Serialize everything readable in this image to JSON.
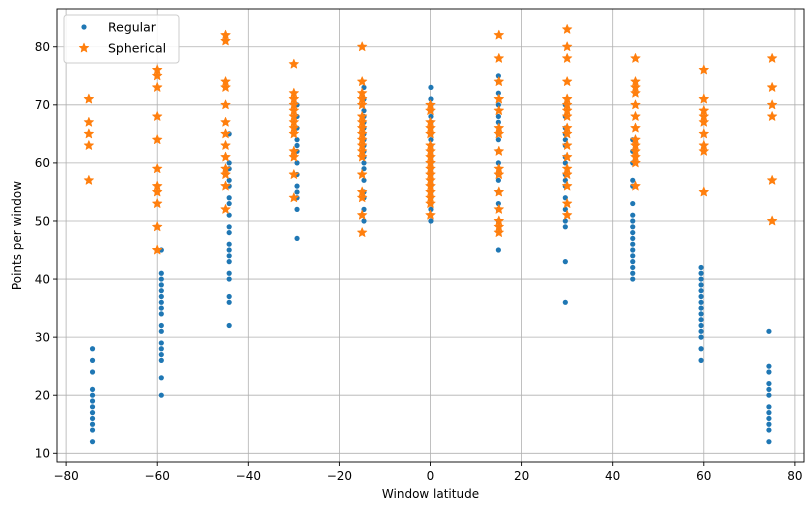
{
  "chart_data": {
    "type": "scatter",
    "title": "",
    "xlabel": "Window latitude",
    "ylabel": "Points per window",
    "xlim": [
      -82,
      82
    ],
    "ylim": [
      8.5,
      86.5
    ],
    "xticks": [
      -80,
      -60,
      -40,
      -20,
      0,
      20,
      40,
      60,
      80
    ],
    "yticks": [
      10,
      20,
      30,
      40,
      50,
      60,
      70,
      80
    ],
    "grid": true,
    "legend_position": "upper-left",
    "series": [
      {
        "name": "Regular",
        "marker": "circle",
        "color": "#1f77b4",
        "points": [
          [
            -74.2,
            12
          ],
          [
            -74.2,
            14
          ],
          [
            -74.2,
            15
          ],
          [
            -74.2,
            16
          ],
          [
            -74.2,
            17
          ],
          [
            -74.2,
            18
          ],
          [
            -74.2,
            19
          ],
          [
            -74.2,
            20
          ],
          [
            -74.2,
            21
          ],
          [
            -74.2,
            24
          ],
          [
            -74.2,
            26
          ],
          [
            -74.2,
            28
          ],
          [
            -59.1,
            20
          ],
          [
            -59.1,
            23
          ],
          [
            -59.1,
            26
          ],
          [
            -59.1,
            27
          ],
          [
            -59.1,
            28
          ],
          [
            -59.1,
            29
          ],
          [
            -59.1,
            31
          ],
          [
            -59.1,
            32
          ],
          [
            -59.1,
            34
          ],
          [
            -59.1,
            35
          ],
          [
            -59.1,
            36
          ],
          [
            -59.1,
            37
          ],
          [
            -59.1,
            38
          ],
          [
            -59.1,
            39
          ],
          [
            -59.1,
            40
          ],
          [
            -59.1,
            41
          ],
          [
            -59.1,
            45
          ],
          [
            -44.2,
            32
          ],
          [
            -44.2,
            36
          ],
          [
            -44.2,
            37
          ],
          [
            -44.2,
            40
          ],
          [
            -44.2,
            41
          ],
          [
            -44.2,
            43
          ],
          [
            -44.2,
            44
          ],
          [
            -44.2,
            45
          ],
          [
            -44.2,
            46
          ],
          [
            -44.2,
            48
          ],
          [
            -44.2,
            49
          ],
          [
            -44.2,
            51
          ],
          [
            -44.2,
            53
          ],
          [
            -44.2,
            54
          ],
          [
            -44.2,
            56
          ],
          [
            -44.2,
            57
          ],
          [
            -44.2,
            59
          ],
          [
            -44.2,
            60
          ],
          [
            -44.2,
            65
          ],
          [
            -29.3,
            47
          ],
          [
            -29.3,
            52
          ],
          [
            -29.3,
            54
          ],
          [
            -29.3,
            55
          ],
          [
            -29.3,
            56
          ],
          [
            -29.3,
            58
          ],
          [
            -29.3,
            60
          ],
          [
            -29.3,
            62
          ],
          [
            -29.3,
            63
          ],
          [
            -29.3,
            64
          ],
          [
            -29.3,
            66
          ],
          [
            -29.3,
            68
          ],
          [
            -29.3,
            70
          ],
          [
            -14.6,
            50
          ],
          [
            -14.6,
            52
          ],
          [
            -14.6,
            54
          ],
          [
            -14.6,
            55
          ],
          [
            -14.6,
            57
          ],
          [
            -14.6,
            59
          ],
          [
            -14.6,
            60
          ],
          [
            -14.6,
            61
          ],
          [
            -14.6,
            62
          ],
          [
            -14.6,
            63
          ],
          [
            -14.6,
            64
          ],
          [
            -14.6,
            65
          ],
          [
            -14.6,
            66
          ],
          [
            -14.6,
            67
          ],
          [
            -14.6,
            68
          ],
          [
            -14.6,
            69
          ],
          [
            -14.6,
            71
          ],
          [
            -14.6,
            73
          ],
          [
            0.1,
            50
          ],
          [
            0.1,
            52
          ],
          [
            0.1,
            53
          ],
          [
            0.1,
            54
          ],
          [
            0.1,
            55
          ],
          [
            0.1,
            56
          ],
          [
            0.1,
            57
          ],
          [
            0.1,
            58
          ],
          [
            0.1,
            59
          ],
          [
            0.1,
            60
          ],
          [
            0.1,
            61
          ],
          [
            0.1,
            62
          ],
          [
            0.1,
            63
          ],
          [
            0.1,
            64
          ],
          [
            0.1,
            65
          ],
          [
            0.1,
            66
          ],
          [
            0.1,
            67
          ],
          [
            0.1,
            68
          ],
          [
            0.1,
            69
          ],
          [
            0.1,
            70
          ],
          [
            0.1,
            71
          ],
          [
            0.1,
            73
          ],
          [
            14.9,
            45
          ],
          [
            14.9,
            50
          ],
          [
            14.9,
            52
          ],
          [
            14.9,
            53
          ],
          [
            14.9,
            55
          ],
          [
            14.9,
            57
          ],
          [
            14.9,
            58
          ],
          [
            14.9,
            60
          ],
          [
            14.9,
            62
          ],
          [
            14.9,
            64
          ],
          [
            14.9,
            65
          ],
          [
            14.9,
            67
          ],
          [
            14.9,
            68
          ],
          [
            14.9,
            70
          ],
          [
            14.9,
            72
          ],
          [
            14.9,
            74
          ],
          [
            14.9,
            75
          ],
          [
            29.6,
            36
          ],
          [
            29.6,
            43
          ],
          [
            29.6,
            49
          ],
          [
            29.6,
            50
          ],
          [
            29.6,
            52
          ],
          [
            29.6,
            54
          ],
          [
            29.6,
            56
          ],
          [
            29.6,
            57
          ],
          [
            29.6,
            58
          ],
          [
            29.6,
            60
          ],
          [
            29.6,
            61
          ],
          [
            29.6,
            63
          ],
          [
            29.6,
            64
          ],
          [
            29.6,
            65
          ],
          [
            29.6,
            66
          ],
          [
            29.6,
            68
          ],
          [
            29.6,
            70
          ],
          [
            44.4,
            40
          ],
          [
            44.4,
            41
          ],
          [
            44.4,
            42
          ],
          [
            44.4,
            43
          ],
          [
            44.4,
            44
          ],
          [
            44.4,
            45
          ],
          [
            44.4,
            46
          ],
          [
            44.4,
            47
          ],
          [
            44.4,
            48
          ],
          [
            44.4,
            49
          ],
          [
            44.4,
            50
          ],
          [
            44.4,
            51
          ],
          [
            44.4,
            53
          ],
          [
            44.4,
            56
          ],
          [
            44.4,
            57
          ],
          [
            44.4,
            60
          ],
          [
            44.4,
            62
          ],
          [
            44.4,
            64
          ],
          [
            59.4,
            26
          ],
          [
            59.4,
            28
          ],
          [
            59.4,
            30
          ],
          [
            59.4,
            31
          ],
          [
            59.4,
            32
          ],
          [
            59.4,
            33
          ],
          [
            59.4,
            34
          ],
          [
            59.4,
            35
          ],
          [
            59.4,
            36
          ],
          [
            59.4,
            37
          ],
          [
            59.4,
            38
          ],
          [
            59.4,
            39
          ],
          [
            59.4,
            40
          ],
          [
            59.4,
            41
          ],
          [
            59.4,
            42
          ],
          [
            74.3,
            12
          ],
          [
            74.3,
            14
          ],
          [
            74.3,
            15
          ],
          [
            74.3,
            16
          ],
          [
            74.3,
            17
          ],
          [
            74.3,
            18
          ],
          [
            74.3,
            20
          ],
          [
            74.3,
            21
          ],
          [
            74.3,
            22
          ],
          [
            74.3,
            24
          ],
          [
            74.3,
            25
          ],
          [
            74.3,
            31
          ]
        ]
      },
      {
        "name": "Spherical",
        "marker": "star",
        "color": "#ff7f0e",
        "points": [
          [
            -75.0,
            57
          ],
          [
            -75.0,
            63
          ],
          [
            -75.0,
            65
          ],
          [
            -75.0,
            67
          ],
          [
            -75.0,
            71
          ],
          [
            -60.0,
            45
          ],
          [
            -60.0,
            49
          ],
          [
            -60.0,
            53
          ],
          [
            -60.0,
            55
          ],
          [
            -60.0,
            56
          ],
          [
            -60.0,
            59
          ],
          [
            -60.0,
            64
          ],
          [
            -60.0,
            68
          ],
          [
            -60.0,
            73
          ],
          [
            -60.0,
            75
          ],
          [
            -60.0,
            76
          ],
          [
            -45.0,
            52
          ],
          [
            -45.0,
            56
          ],
          [
            -45.0,
            58
          ],
          [
            -45.0,
            59
          ],
          [
            -45.0,
            61
          ],
          [
            -45.0,
            63
          ],
          [
            -45.0,
            65
          ],
          [
            -45.0,
            67
          ],
          [
            -45.0,
            70
          ],
          [
            -45.0,
            73
          ],
          [
            -45.0,
            74
          ],
          [
            -45.0,
            81
          ],
          [
            -45.0,
            82
          ],
          [
            -30.0,
            54
          ],
          [
            -30.0,
            58
          ],
          [
            -30.0,
            61
          ],
          [
            -30.0,
            62
          ],
          [
            -30.0,
            65
          ],
          [
            -30.0,
            66
          ],
          [
            -30.0,
            67
          ],
          [
            -30.0,
            68
          ],
          [
            -30.0,
            69
          ],
          [
            -30.0,
            70
          ],
          [
            -30.0,
            71
          ],
          [
            -30.0,
            72
          ],
          [
            -30.0,
            77
          ],
          [
            -15.0,
            48
          ],
          [
            -15.0,
            51
          ],
          [
            -15.0,
            54
          ],
          [
            -15.0,
            55
          ],
          [
            -15.0,
            58
          ],
          [
            -15.0,
            61
          ],
          [
            -15.0,
            62
          ],
          [
            -15.0,
            63
          ],
          [
            -15.0,
            64
          ],
          [
            -15.0,
            65
          ],
          [
            -15.0,
            66
          ],
          [
            -15.0,
            67
          ],
          [
            -15.0,
            68
          ],
          [
            -15.0,
            70
          ],
          [
            -15.0,
            71
          ],
          [
            -15.0,
            72
          ],
          [
            -15.0,
            74
          ],
          [
            -15.0,
            80
          ],
          [
            0.0,
            51
          ],
          [
            0.0,
            53
          ],
          [
            0.0,
            54
          ],
          [
            0.0,
            55
          ],
          [
            0.0,
            56
          ],
          [
            0.0,
            57
          ],
          [
            0.0,
            58
          ],
          [
            0.0,
            59
          ],
          [
            0.0,
            60
          ],
          [
            0.0,
            61
          ],
          [
            0.0,
            62
          ],
          [
            0.0,
            63
          ],
          [
            0.0,
            65
          ],
          [
            0.0,
            66
          ],
          [
            0.0,
            67
          ],
          [
            0.0,
            69
          ],
          [
            0.0,
            70
          ],
          [
            15.0,
            48
          ],
          [
            15.0,
            49
          ],
          [
            15.0,
            50
          ],
          [
            15.0,
            52
          ],
          [
            15.0,
            55
          ],
          [
            15.0,
            58
          ],
          [
            15.0,
            59
          ],
          [
            15.0,
            62
          ],
          [
            15.0,
            65
          ],
          [
            15.0,
            66
          ],
          [
            15.0,
            69
          ],
          [
            15.0,
            71
          ],
          [
            15.0,
            74
          ],
          [
            15.0,
            78
          ],
          [
            15.0,
            82
          ],
          [
            30.0,
            51
          ],
          [
            30.0,
            53
          ],
          [
            30.0,
            56
          ],
          [
            30.0,
            58
          ],
          [
            30.0,
            59
          ],
          [
            30.0,
            61
          ],
          [
            30.0,
            63
          ],
          [
            30.0,
            65
          ],
          [
            30.0,
            66
          ],
          [
            30.0,
            68
          ],
          [
            30.0,
            69
          ],
          [
            30.0,
            70
          ],
          [
            30.0,
            71
          ],
          [
            30.0,
            74
          ],
          [
            30.0,
            78
          ],
          [
            30.0,
            80
          ],
          [
            30.0,
            83
          ],
          [
            45.0,
            56
          ],
          [
            45.0,
            60
          ],
          [
            45.0,
            61
          ],
          [
            45.0,
            62
          ],
          [
            45.0,
            63
          ],
          [
            45.0,
            64
          ],
          [
            45.0,
            66
          ],
          [
            45.0,
            68
          ],
          [
            45.0,
            70
          ],
          [
            45.0,
            72
          ],
          [
            45.0,
            73
          ],
          [
            45.0,
            74
          ],
          [
            45.0,
            78
          ],
          [
            60.0,
            55
          ],
          [
            60.0,
            62
          ],
          [
            60.0,
            63
          ],
          [
            60.0,
            65
          ],
          [
            60.0,
            67
          ],
          [
            60.0,
            68
          ],
          [
            60.0,
            69
          ],
          [
            60.0,
            71
          ],
          [
            60.0,
            76
          ],
          [
            75.0,
            50
          ],
          [
            75.0,
            57
          ],
          [
            75.0,
            68
          ],
          [
            75.0,
            70
          ],
          [
            75.0,
            73
          ],
          [
            75.0,
            78
          ]
        ]
      }
    ]
  }
}
